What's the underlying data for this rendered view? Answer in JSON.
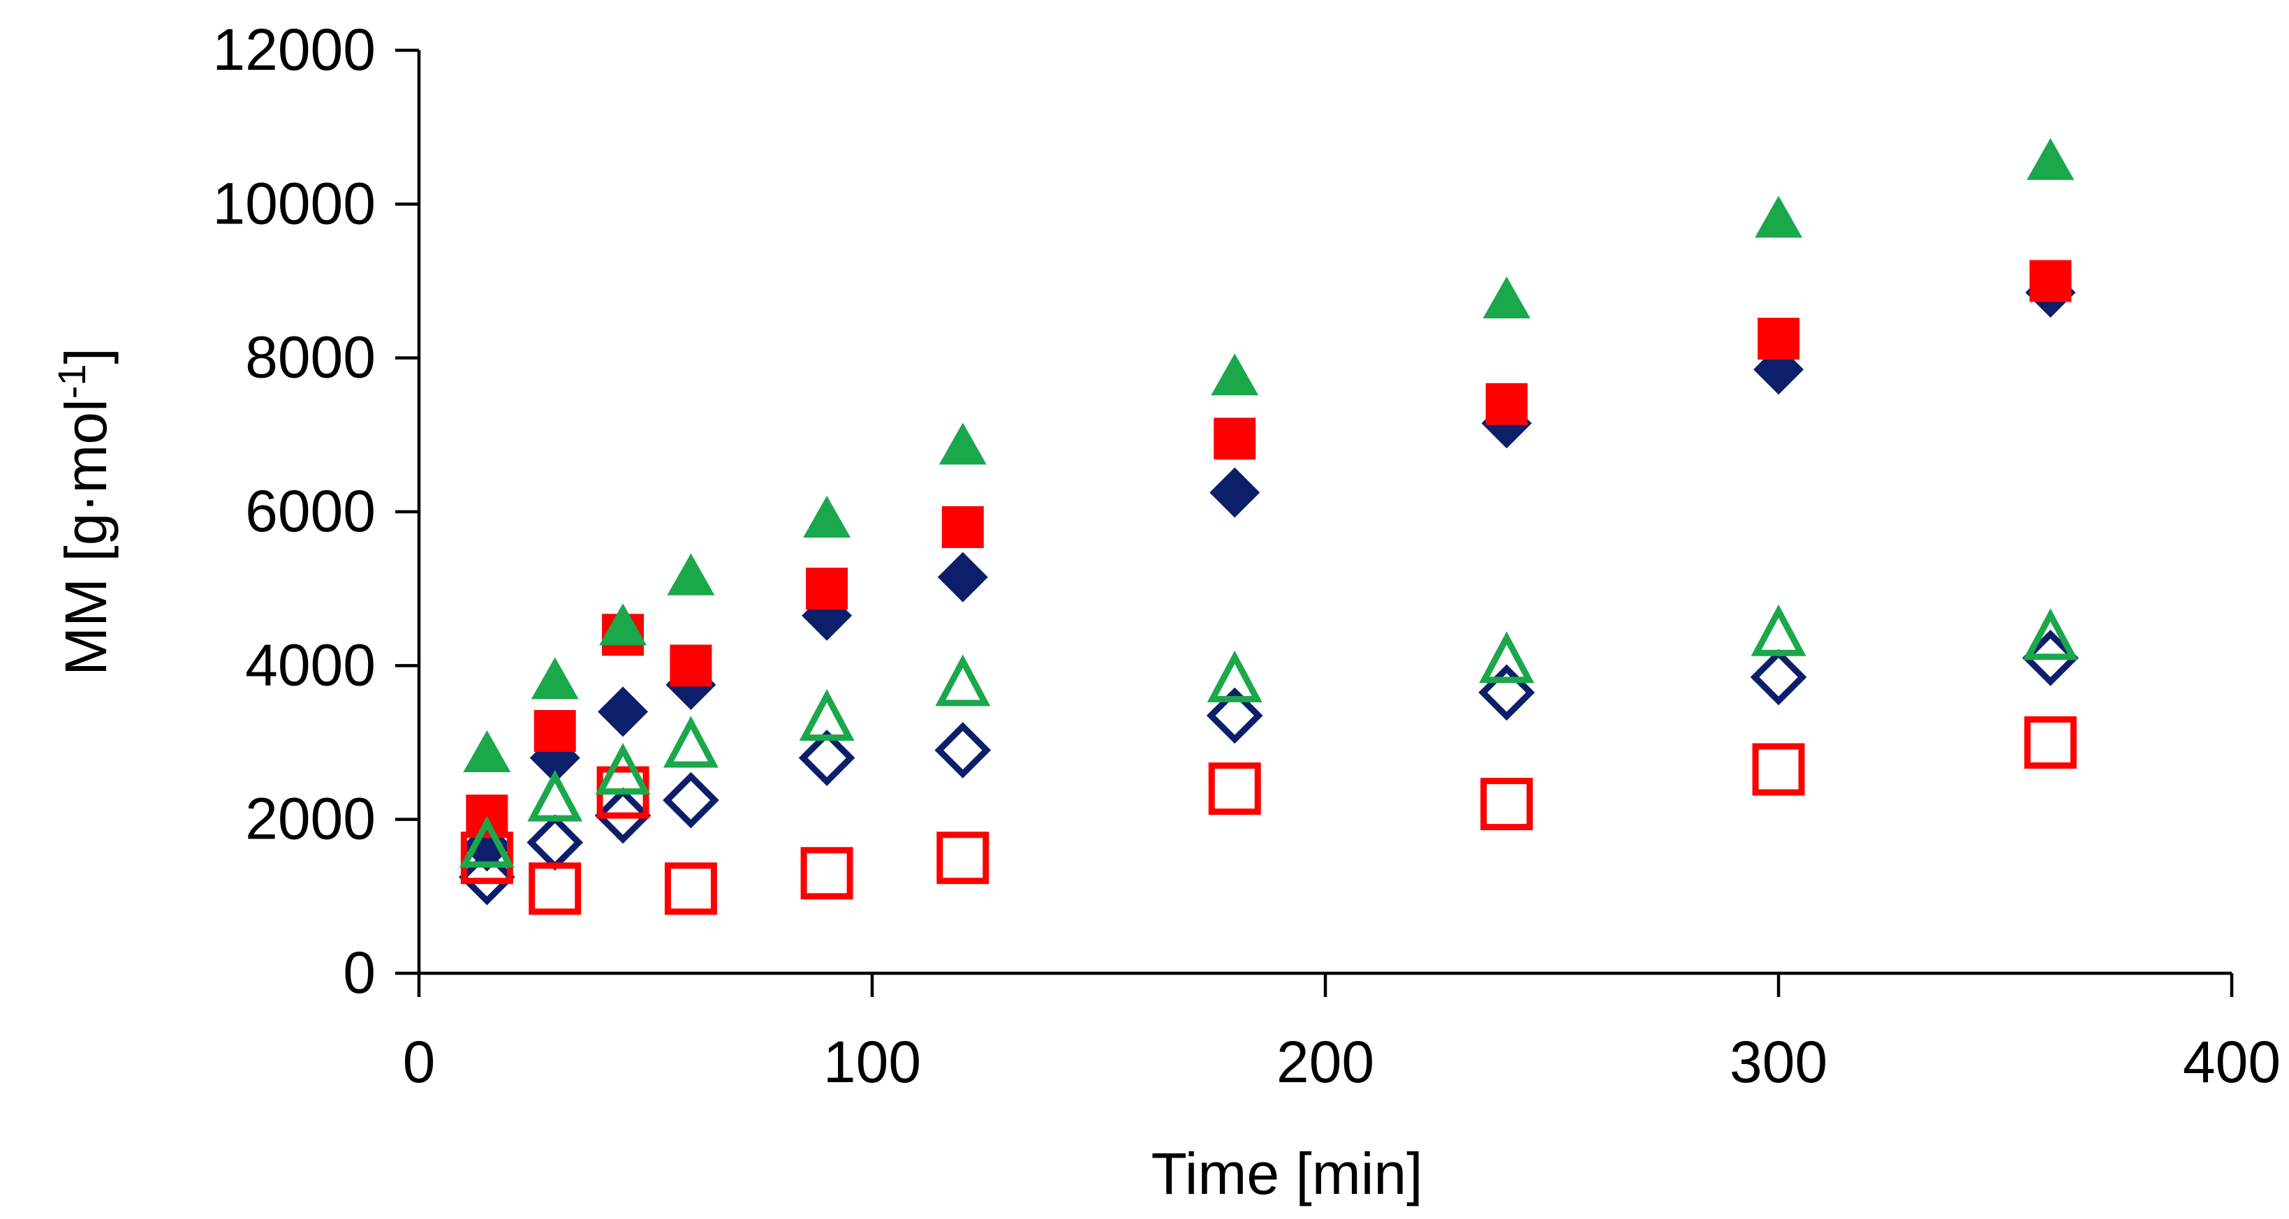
{
  "chart_data": {
    "type": "scatter",
    "title": "",
    "xlabel": "Time [min]",
    "ylabel_text": "MM [g·mol",
    "ylabel_sup": "-1",
    "ylabel_close": "]",
    "xlim": [
      0,
      400
    ],
    "ylim": [
      0,
      12000
    ],
    "xticks": [
      0,
      100,
      200,
      300,
      400
    ],
    "yticks": [
      0,
      2000,
      4000,
      6000,
      8000,
      10000,
      12000
    ],
    "xtick_labels": [
      "0",
      "100",
      "200",
      "300",
      "400"
    ],
    "ytick_labels": [
      "0",
      "2000",
      "4000",
      "6000",
      "8000",
      "10000",
      "12000"
    ],
    "grid": false,
    "legend": "none",
    "series": [
      {
        "name": "filled-diamond-navy",
        "marker": "diamond",
        "filled": true,
        "color": "#0d1f6b",
        "x": [
          15,
          30,
          45,
          60,
          90,
          120,
          180,
          240,
          300,
          360
        ],
        "y": [
          1650,
          2800,
          3400,
          3750,
          4650,
          5150,
          6250,
          7150,
          7850,
          8850
        ]
      },
      {
        "name": "filled-square-red",
        "marker": "square",
        "filled": true,
        "color": "#ff0000",
        "x": [
          15,
          30,
          45,
          60,
          90,
          120,
          180,
          240,
          300,
          360
        ],
        "y": [
          2050,
          3150,
          4400,
          4000,
          5000,
          5800,
          6950,
          7400,
          8250,
          9000
        ]
      },
      {
        "name": "filled-triangle-green",
        "marker": "triangle",
        "filled": true,
        "color": "#1aa84a",
        "x": [
          15,
          30,
          45,
          60,
          90,
          120,
          180,
          240,
          300,
          360
        ],
        "y": [
          2850,
          3800,
          4500,
          5150,
          5900,
          6850,
          7750,
          8750,
          9800,
          10550
        ]
      },
      {
        "name": "open-diamond-navy",
        "marker": "diamond",
        "filled": false,
        "color": "#0d1f6b",
        "x": [
          15,
          30,
          45,
          60,
          90,
          120,
          180,
          240,
          300,
          360
        ],
        "y": [
          1250,
          1700,
          2050,
          2250,
          2800,
          2900,
          3350,
          3650,
          3850,
          4100
        ]
      },
      {
        "name": "open-square-red",
        "marker": "square",
        "filled": false,
        "color": "#ff0000",
        "x": [
          15,
          30,
          45,
          60,
          90,
          120,
          180,
          240,
          300,
          360
        ],
        "y": [
          1500,
          1100,
          2350,
          1100,
          1300,
          1500,
          2400,
          2200,
          2650,
          3000
        ]
      },
      {
        "name": "open-triangle-green",
        "marker": "triangle",
        "filled": false,
        "color": "#1aa84a",
        "x": [
          15,
          30,
          45,
          60,
          90,
          120,
          180,
          240,
          300,
          360
        ],
        "y": [
          1650,
          2250,
          2600,
          2950,
          3300,
          3750,
          3800,
          4050,
          4400,
          4350
        ]
      }
    ]
  }
}
